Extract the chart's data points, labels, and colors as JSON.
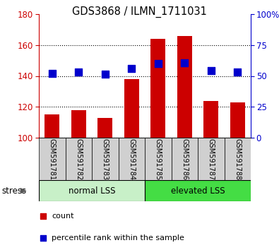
{
  "title": "GDS3868 / ILMN_1711031",
  "samples": [
    "GSM591781",
    "GSM591782",
    "GSM591783",
    "GSM591784",
    "GSM591785",
    "GSM591786",
    "GSM591787",
    "GSM591788"
  ],
  "counts": [
    115,
    118,
    113,
    138,
    164,
    166,
    124,
    123
  ],
  "percentile_ranks_left": [
    141.5,
    142.5,
    141,
    145,
    148,
    148.5,
    143.5,
    142.5
  ],
  "group1_label": "normal LSS",
  "group1_indices": [
    0,
    1,
    2,
    3
  ],
  "group2_label": "elevated LSS",
  "group2_indices": [
    4,
    5,
    6,
    7
  ],
  "stress_label": "stress",
  "ylim_left": [
    100,
    180
  ],
  "ylim_right": [
    0,
    100
  ],
  "yticks_left": [
    100,
    120,
    140,
    160,
    180
  ],
  "ytick_labels_left": [
    "100",
    "120",
    "140",
    "160",
    "180"
  ],
  "yticks_right": [
    0,
    25,
    50,
    75,
    100
  ],
  "ytick_labels_right": [
    "0",
    "25",
    "50",
    "75",
    "100%"
  ],
  "bar_color": "#cc0000",
  "dot_color": "#0000cc",
  "group1_bg": "#c8f0c8",
  "group2_bg": "#44dd44",
  "sample_bg": "#d0d0d0",
  "bar_bottom": 100,
  "bar_width": 0.55,
  "dot_size": 45,
  "left_axis_color": "#cc0000",
  "right_axis_color": "#0000cc"
}
